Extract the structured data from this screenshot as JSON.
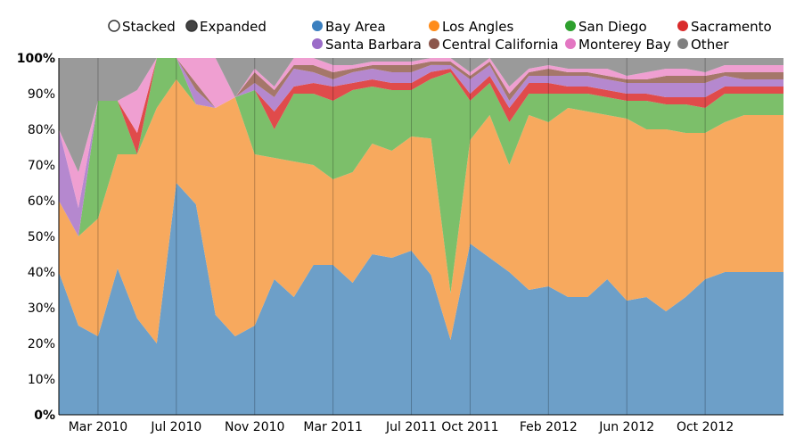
{
  "controls": [
    {
      "label": "Stacked",
      "selected": false
    },
    {
      "label": "Expanded",
      "selected": true
    }
  ],
  "chart_data": {
    "type": "area",
    "mode": "expanded",
    "title": "",
    "xlabel": "",
    "ylabel": "",
    "ylim": [
      0,
      100
    ],
    "yticks": [
      "0%",
      "10%",
      "20%",
      "30%",
      "40%",
      "50%",
      "60%",
      "70%",
      "80%",
      "90%",
      "100%"
    ],
    "xticks": [
      "Mar 2010",
      "Jul 2010",
      "Nov 2010",
      "Mar 2011",
      "Jul 2011",
      "Oct 2011",
      "Feb 2012",
      "Jun 2012",
      "Oct 2012"
    ],
    "legend_position": "top-right",
    "x": [
      "Jan 2010",
      "Feb 2010",
      "Mar 2010",
      "Apr 2010",
      "May 2010",
      "Jun 2010",
      "Jul 2010",
      "Aug 2010",
      "Sep 2010",
      "Oct 2010",
      "Nov 2010",
      "Dec 2010",
      "Jan 2011",
      "Feb 2011",
      "Mar 2011",
      "Apr 2011",
      "May 2011",
      "Jun 2011",
      "Jul 2011",
      "Aug 2011",
      "Sep 2011",
      "Oct 2011",
      "Nov 2011",
      "Dec 2011",
      "Jan 2012",
      "Feb 2012",
      "Mar 2012",
      "Apr 2012",
      "May 2012",
      "Jun 2012",
      "Jul 2012",
      "Aug 2012",
      "Sep 2012",
      "Oct 2012",
      "Nov 2012",
      "Dec 2012",
      "Jan 2013",
      "Feb 2013"
    ],
    "series": [
      {
        "name": "Bay Area",
        "color": "#6d9fc8",
        "values": [
          40,
          25,
          22,
          41,
          27,
          20,
          65,
          59,
          28,
          22,
          25,
          38,
          33,
          42,
          42,
          37,
          45,
          44,
          46,
          40,
          21,
          48,
          44,
          40,
          35,
          36,
          33,
          33,
          38,
          32,
          33,
          29,
          33,
          38,
          40,
          40,
          40,
          40
        ]
      },
      {
        "name": "Los Angles",
        "color": "#f7a95e",
        "values": [
          20,
          25,
          33,
          32,
          46,
          66,
          29,
          28,
          58,
          67,
          48,
          34,
          38,
          28,
          24,
          31,
          31,
          30,
          32,
          39,
          13,
          29,
          40,
          30,
          49,
          46,
          53,
          52,
          46,
          51,
          47,
          51,
          46,
          41,
          42,
          44,
          44,
          44
        ]
      },
      {
        "name": "San Diego",
        "color": "#7cbf6a",
        "values": [
          0,
          0,
          33,
          15,
          0,
          14,
          6,
          0,
          0,
          0,
          18,
          8,
          19,
          20,
          22,
          23,
          16,
          17,
          13,
          17,
          62,
          11,
          9,
          12,
          6,
          8,
          4,
          5,
          5,
          5,
          8,
          7,
          8,
          7,
          8,
          6,
          6,
          6
        ]
      },
      {
        "name": "Sacramento",
        "color": "#e04b4b",
        "values": [
          0,
          0,
          0,
          0,
          6,
          0,
          0,
          0,
          0,
          0,
          0,
          5,
          2,
          3,
          4,
          2,
          2,
          2,
          2,
          2,
          1,
          2,
          2,
          4,
          3,
          3,
          2,
          2,
          2,
          2,
          2,
          2,
          2,
          3,
          2,
          2,
          2,
          2
        ]
      },
      {
        "name": "Santa Barbara",
        "color": "#b588cf",
        "values": [
          20,
          8,
          0,
          0,
          0,
          0,
          0,
          4,
          0,
          0,
          2,
          4,
          5,
          3,
          2,
          3,
          3,
          3,
          3,
          2,
          1,
          4,
          3,
          2,
          2,
          2,
          3,
          3,
          3,
          3,
          3,
          4,
          4,
          4,
          3,
          2,
          2,
          2
        ]
      },
      {
        "name": "Central California",
        "color": "#a5776a",
        "values": [
          0,
          0,
          0,
          0,
          0,
          0,
          0,
          2,
          0,
          0,
          3,
          2,
          1,
          2,
          2,
          1,
          1,
          2,
          2,
          1,
          1,
          1,
          1,
          2,
          1,
          2,
          1,
          1,
          1,
          1,
          1,
          2,
          2,
          2,
          1,
          2,
          2,
          2
        ]
      },
      {
        "name": "Monterey Bay",
        "color": "#ef9fd1",
        "values": [
          0,
          10,
          0,
          0,
          12,
          0,
          0,
          7,
          14,
          0,
          1,
          1,
          2,
          2,
          2,
          1,
          1,
          1,
          1,
          1,
          1,
          1,
          1,
          2,
          1,
          1,
          1,
          1,
          2,
          1,
          2,
          2,
          2,
          1,
          2,
          2,
          2,
          2
        ]
      },
      {
        "name": "Other",
        "color": "#9a9a9a",
        "values": [
          20,
          32,
          12,
          12,
          9,
          0,
          0,
          0,
          0,
          11,
          3,
          8,
          0,
          0,
          2,
          2,
          1,
          1,
          1,
          0,
          0,
          4,
          0,
          8,
          3,
          2,
          3,
          3,
          3,
          5,
          4,
          3,
          3,
          4,
          2,
          2,
          2,
          2
        ]
      }
    ]
  }
}
